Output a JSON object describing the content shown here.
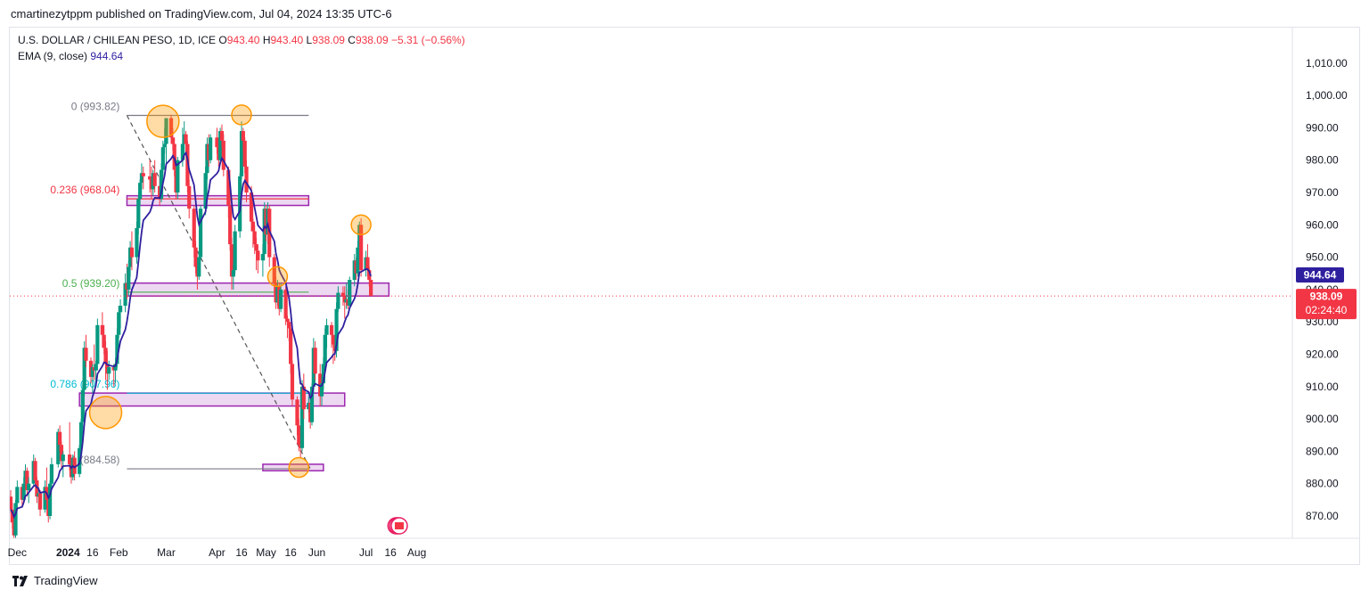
{
  "header": {
    "published": "cmartinezytppm published on TradingView.com, Jul 04, 2024 13:35 UTC-6"
  },
  "legend": {
    "symbol": "U.S. DOLLAR / CHILEAN PESO, 1D, ICE",
    "o_label": "O",
    "o": "943.40",
    "h_label": "H",
    "h": "943.40",
    "l_label": "L",
    "l": "938.09",
    "c_label": "C",
    "c": "938.09",
    "change": "−5.31 (−0.56%)",
    "ema_label": "EMA (9, close)",
    "ema_value": "944.64"
  },
  "price_tags": {
    "ema": "944.64",
    "last": "938.09",
    "countdown": "02:24:40"
  },
  "footer": {
    "brand": "TradingView"
  },
  "colors": {
    "up": "#089981",
    "down": "#f23645",
    "ema": "#2e1f9e",
    "zone_fill": "#e1bee7",
    "zone_border": "#9c27b0",
    "marker": "#ff9800",
    "fib_0": "#787b86",
    "fib_236": "#f23645",
    "fib_05": "#4caf50",
    "fib_786": "#00bcd4",
    "fib_1": "#787b86"
  },
  "chart_data": {
    "type": "candlestick",
    "symbol": "USDCLP",
    "timeframe": "1D",
    "y_ticks": [
      870,
      880,
      890,
      900,
      910,
      920,
      930,
      940,
      950,
      960,
      970,
      980,
      990,
      1000,
      1010
    ],
    "y_tick_labels": [
      "870.00",
      "880.00",
      "890.00",
      "900.00",
      "910.00",
      "920.00",
      "930.00",
      "940.00",
      "950.00",
      "960.00",
      "970.00",
      "980.00",
      "990.00",
      "1,000.00",
      "1,010.00"
    ],
    "ylim": [
      862,
      1020
    ],
    "x_ticks": [
      {
        "date": "2023-12-01",
        "label": "Dec",
        "bold": false
      },
      {
        "date": "2024-01-01",
        "label": "2024",
        "bold": true
      },
      {
        "date": "2024-01-16",
        "label": "16",
        "bold": false
      },
      {
        "date": "2024-02-01",
        "label": "Feb",
        "bold": false
      },
      {
        "date": "2024-03-01",
        "label": "Mar",
        "bold": false
      },
      {
        "date": "2024-04-01",
        "label": "Apr",
        "bold": false
      },
      {
        "date": "2024-04-16",
        "label": "16",
        "bold": false
      },
      {
        "date": "2024-05-01",
        "label": "May",
        "bold": false
      },
      {
        "date": "2024-05-16",
        "label": "16",
        "bold": false
      },
      {
        "date": "2024-06-01",
        "label": "Jun",
        "bold": false
      },
      {
        "date": "2024-07-01",
        "label": "Jul",
        "bold": false
      },
      {
        "date": "2024-07-16",
        "label": "16",
        "bold": false
      },
      {
        "date": "2024-08-01",
        "label": "Aug",
        "bold": false
      }
    ],
    "x_start": "2023-11-27",
    "candles": [
      [
        "2023-11-27",
        876,
        878,
        871,
        872
      ],
      [
        "2023-11-28",
        872,
        874,
        866,
        868
      ],
      [
        "2023-11-29",
        868,
        871,
        862,
        864
      ],
      [
        "2023-11-30",
        864,
        875,
        863,
        874
      ],
      [
        "2023-12-01",
        874,
        881,
        872,
        879
      ],
      [
        "2023-12-04",
        879,
        880,
        873,
        875
      ],
      [
        "2023-12-05",
        875,
        882,
        874,
        880
      ],
      [
        "2023-12-06",
        880,
        886,
        878,
        884
      ],
      [
        "2023-12-07",
        884,
        885,
        876,
        878
      ],
      [
        "2023-12-08",
        878,
        882,
        874,
        880
      ],
      [
        "2023-12-11",
        880,
        889,
        879,
        887
      ],
      [
        "2023-12-12",
        887,
        888,
        880,
        881
      ],
      [
        "2023-12-13",
        881,
        882,
        874,
        876
      ],
      [
        "2023-12-14",
        876,
        879,
        872,
        877
      ],
      [
        "2023-12-15",
        877,
        878,
        870,
        872
      ],
      [
        "2023-12-18",
        872,
        881,
        871,
        879
      ],
      [
        "2023-12-19",
        879,
        885,
        874,
        875
      ],
      [
        "2023-12-20",
        875,
        877,
        868,
        870
      ],
      [
        "2023-12-21",
        870,
        881,
        869,
        880
      ],
      [
        "2023-12-22",
        880,
        888,
        879,
        886
      ],
      [
        "2023-12-26",
        886,
        897,
        885,
        896
      ],
      [
        "2023-12-27",
        896,
        898,
        890,
        892
      ],
      [
        "2023-12-28",
        892,
        893,
        885,
        887
      ],
      [
        "2023-12-29",
        887,
        890,
        882,
        889
      ],
      [
        "2024-01-02",
        889,
        899,
        884,
        886
      ],
      [
        "2024-01-03",
        886,
        888,
        880,
        882
      ],
      [
        "2024-01-04",
        882,
        889,
        881,
        888
      ],
      [
        "2024-01-05",
        888,
        890,
        881,
        883
      ],
      [
        "2024-01-08",
        883,
        892,
        882,
        891
      ],
      [
        "2024-01-09",
        891,
        900,
        890,
        899
      ],
      [
        "2024-01-10",
        899,
        911,
        897,
        909
      ],
      [
        "2024-01-11",
        909,
        924,
        907,
        922
      ],
      [
        "2024-01-12",
        922,
        926,
        916,
        918
      ],
      [
        "2024-01-15",
        918,
        919,
        911,
        913
      ],
      [
        "2024-01-16",
        913,
        917,
        908,
        916
      ],
      [
        "2024-01-17",
        916,
        923,
        912,
        915
      ],
      [
        "2024-01-18",
        915,
        918,
        911,
        917
      ],
      [
        "2024-01-19",
        917,
        931,
        915,
        929
      ],
      [
        "2024-01-22",
        929,
        933,
        922,
        926
      ],
      [
        "2024-01-23",
        926,
        929,
        920,
        922
      ],
      [
        "2024-01-24",
        922,
        924,
        912,
        917
      ],
      [
        "2024-01-25",
        917,
        921,
        909,
        914
      ],
      [
        "2024-01-26",
        914,
        918,
        912,
        916
      ],
      [
        "2024-01-29",
        916,
        917,
        910,
        915
      ],
      [
        "2024-01-30",
        915,
        919,
        911,
        917
      ],
      [
        "2024-01-31",
        917,
        928,
        916,
        926
      ],
      [
        "2024-02-01",
        926,
        935,
        925,
        933
      ],
      [
        "2024-02-02",
        933,
        937,
        928,
        935
      ],
      [
        "2024-02-05",
        935,
        945,
        933,
        942
      ],
      [
        "2024-02-06",
        942,
        948,
        937,
        940
      ],
      [
        "2024-02-07",
        940,
        949,
        938,
        947
      ],
      [
        "2024-02-08",
        947,
        955,
        944,
        953
      ],
      [
        "2024-02-09",
        953,
        958,
        946,
        950
      ],
      [
        "2024-02-12",
        950,
        961,
        948,
        959
      ],
      [
        "2024-02-13",
        959,
        969,
        957,
        968
      ],
      [
        "2024-02-14",
        968,
        974,
        966,
        973
      ],
      [
        "2024-02-15",
        973,
        979,
        971,
        976
      ],
      [
        "2024-02-16",
        976,
        978,
        971,
        975
      ],
      [
        "2024-02-20",
        975,
        980,
        970,
        974
      ],
      [
        "2024-02-21",
        974,
        978,
        968,
        971
      ],
      [
        "2024-02-22",
        971,
        977,
        969,
        976
      ],
      [
        "2024-02-23",
        976,
        980,
        970,
        972
      ],
      [
        "2024-02-26",
        972,
        975,
        966,
        968
      ],
      [
        "2024-02-27",
        968,
        979,
        967,
        977
      ],
      [
        "2024-02-28",
        977,
        986,
        975,
        984
      ],
      [
        "2024-02-29",
        984,
        990,
        982,
        985
      ],
      [
        "2024-03-01",
        985,
        993,
        979,
        993
      ],
      [
        "2024-03-04",
        993,
        994,
        985,
        987
      ],
      [
        "2024-03-05",
        987,
        990,
        983,
        985
      ],
      [
        "2024-03-06",
        985,
        987,
        975,
        977
      ],
      [
        "2024-03-07",
        977,
        981,
        968,
        970
      ],
      [
        "2024-03-08",
        970,
        981,
        968,
        980
      ],
      [
        "2024-03-11",
        980,
        990,
        978,
        985
      ],
      [
        "2024-03-12",
        985,
        992,
        980,
        988
      ],
      [
        "2024-03-13",
        988,
        989,
        982,
        985
      ],
      [
        "2024-03-14",
        985,
        986,
        970,
        972
      ],
      [
        "2024-03-15",
        972,
        974,
        962,
        965
      ],
      [
        "2024-03-18",
        965,
        966,
        950,
        953
      ],
      [
        "2024-03-19",
        953,
        955,
        945,
        947
      ],
      [
        "2024-03-20",
        947,
        950,
        940,
        944
      ],
      [
        "2024-03-21",
        944,
        952,
        943,
        950
      ],
      [
        "2024-03-22",
        950,
        966,
        949,
        965
      ],
      [
        "2024-03-25",
        965,
        978,
        963,
        976
      ],
      [
        "2024-03-26",
        976,
        987,
        974,
        985
      ],
      [
        "2024-03-27",
        985,
        988,
        978,
        980
      ],
      [
        "2024-03-28",
        980,
        988,
        979,
        987
      ],
      [
        "2024-04-01",
        987,
        990,
        982,
        984
      ],
      [
        "2024-04-02",
        984,
        985,
        978,
        980
      ],
      [
        "2024-04-03",
        980,
        990,
        979,
        989
      ],
      [
        "2024-04-04",
        989,
        991,
        984,
        986
      ],
      [
        "2024-04-05",
        986,
        988,
        975,
        977
      ],
      [
        "2024-04-08",
        977,
        978,
        962,
        966
      ],
      [
        "2024-04-09",
        966,
        968,
        952,
        954
      ],
      [
        "2024-04-10",
        954,
        956,
        940,
        944
      ],
      [
        "2024-04-11",
        944,
        948,
        940,
        946
      ],
      [
        "2024-04-12",
        946,
        960,
        945,
        958
      ],
      [
        "2024-04-15",
        958,
        976,
        956,
        975
      ],
      [
        "2024-04-16",
        975,
        992,
        974,
        989
      ],
      [
        "2024-04-17",
        989,
        990,
        983,
        986
      ],
      [
        "2024-04-18",
        986,
        987,
        976,
        978
      ],
      [
        "2024-04-19",
        978,
        980,
        967,
        970
      ],
      [
        "2024-04-22",
        970,
        972,
        958,
        961
      ],
      [
        "2024-04-23",
        961,
        962,
        953,
        958
      ],
      [
        "2024-04-24",
        958,
        960,
        951,
        954
      ],
      [
        "2024-04-25",
        954,
        956,
        946,
        952
      ],
      [
        "2024-04-26",
        952,
        954,
        945,
        949
      ],
      [
        "2024-04-29",
        949,
        954,
        944,
        951
      ],
      [
        "2024-04-30",
        951,
        967,
        949,
        965
      ],
      [
        "2024-05-01",
        965,
        966,
        955,
        957
      ],
      [
        "2024-05-02",
        957,
        967,
        954,
        965
      ],
      [
        "2024-05-03",
        965,
        966,
        947,
        950
      ],
      [
        "2024-05-06",
        950,
        951,
        938,
        942
      ],
      [
        "2024-05-07",
        942,
        944,
        934,
        936
      ],
      [
        "2024-05-08",
        936,
        943,
        935,
        941
      ],
      [
        "2024-05-09",
        941,
        942,
        932,
        934
      ],
      [
        "2024-05-10",
        934,
        942,
        933,
        940
      ],
      [
        "2024-05-13",
        940,
        941,
        929,
        931
      ],
      [
        "2024-05-14",
        931,
        932,
        925,
        930
      ],
      [
        "2024-05-15",
        930,
        931,
        924,
        928
      ],
      [
        "2024-05-16",
        928,
        929,
        914,
        917
      ],
      [
        "2024-05-17",
        917,
        918,
        904,
        906
      ],
      [
        "2024-05-20",
        906,
        907,
        895,
        898
      ],
      [
        "2024-05-21",
        898,
        900,
        890,
        892
      ],
      [
        "2024-05-22",
        892,
        894,
        888,
        891
      ],
      [
        "2024-05-23",
        891,
        912,
        890,
        910
      ],
      [
        "2024-05-24",
        910,
        914,
        900,
        903
      ],
      [
        "2024-05-27",
        903,
        907,
        902,
        905
      ],
      [
        "2024-05-28",
        905,
        907,
        897,
        899
      ],
      [
        "2024-05-29",
        899,
        911,
        898,
        910
      ],
      [
        "2024-05-30",
        910,
        925,
        908,
        922
      ],
      [
        "2024-05-31",
        922,
        924,
        912,
        914
      ],
      [
        "2024-06-03",
        914,
        917,
        904,
        907
      ],
      [
        "2024-06-04",
        907,
        913,
        904,
        911
      ],
      [
        "2024-06-05",
        911,
        919,
        909,
        917
      ],
      [
        "2024-06-06",
        917,
        928,
        916,
        926
      ],
      [
        "2024-06-07",
        926,
        931,
        922,
        929
      ],
      [
        "2024-06-10",
        929,
        930,
        922,
        926
      ],
      [
        "2024-06-11",
        926,
        926,
        917,
        923
      ],
      [
        "2024-06-12",
        923,
        925,
        918,
        921
      ],
      [
        "2024-06-13",
        921,
        936,
        919,
        934
      ],
      [
        "2024-06-14",
        934,
        941,
        933,
        939
      ],
      [
        "2024-06-17",
        939,
        941,
        935,
        938
      ],
      [
        "2024-06-18",
        938,
        941,
        931,
        936
      ],
      [
        "2024-06-19",
        936,
        942,
        934,
        937
      ],
      [
        "2024-06-20",
        937,
        940,
        934,
        935
      ],
      [
        "2024-06-21",
        935,
        944,
        934,
        943
      ],
      [
        "2024-06-24",
        943,
        951,
        941,
        949
      ],
      [
        "2024-06-25",
        949,
        950,
        943,
        945
      ],
      [
        "2024-06-26",
        945,
        955,
        944,
        953
      ],
      [
        "2024-06-27",
        953,
        961,
        950,
        960
      ],
      [
        "2024-06-28",
        960,
        962,
        944,
        946
      ],
      [
        "2024-07-01",
        946,
        952,
        944,
        950
      ],
      [
        "2024-07-02",
        950,
        954,
        944,
        946
      ],
      [
        "2024-07-03",
        946,
        947,
        941,
        943
      ],
      [
        "2024-07-04",
        943,
        943,
        938,
        938
      ]
    ],
    "ema_period": 9,
    "fibonacci": [
      {
        "level": "0",
        "price": 993.82,
        "label": "0 (993.82)",
        "color": "#787b86"
      },
      {
        "level": "0.236",
        "price": 968.04,
        "label": "0.236 (968.04)",
        "color": "#f23645"
      },
      {
        "level": "0.5",
        "price": 939.2,
        "label": "0.5 (939.20)",
        "color": "#4caf50"
      },
      {
        "level": "0.786",
        "price": 907.96,
        "label": "0.786 (907.96)",
        "color": "#00bcd4"
      },
      {
        "level": "1",
        "price": 884.58,
        "label": "1 (884.58)",
        "color": "#787b86"
      }
    ],
    "fib_range": {
      "start": "2024-02-06",
      "end": "2024-05-27"
    },
    "zones": [
      {
        "start": "2024-02-06",
        "end": "2024-05-27",
        "low": 966,
        "high": 969
      },
      {
        "start": "2024-02-06",
        "end": "2024-07-15",
        "low": 938,
        "high": 942
      },
      {
        "start": "2024-01-08",
        "end": "2024-06-18",
        "low": 904,
        "high": 908
      },
      {
        "start": "2024-04-29",
        "end": "2024-06-05",
        "low": 884,
        "high": 886
      }
    ],
    "trendline": {
      "from": {
        "date": "2024-02-06",
        "price": 993.82
      },
      "to": {
        "date": "2024-05-28",
        "price": 884.58
      }
    },
    "markers": [
      {
        "date": "2024-01-24",
        "price": 902,
        "size": "large"
      },
      {
        "date": "2024-02-28",
        "price": 992,
        "size": "large"
      },
      {
        "date": "2024-04-16",
        "price": 994,
        "size": "small"
      },
      {
        "date": "2024-05-08",
        "price": 944,
        "size": "small"
      },
      {
        "date": "2024-05-21",
        "price": 885,
        "size": "small"
      },
      {
        "date": "2024-06-28",
        "price": 960,
        "size": "small"
      }
    ],
    "event_icons": [
      {
        "date": "2024-07-03"
      },
      {
        "date": "2024-07-04"
      },
      {
        "date": "2024-07-05"
      }
    ]
  }
}
